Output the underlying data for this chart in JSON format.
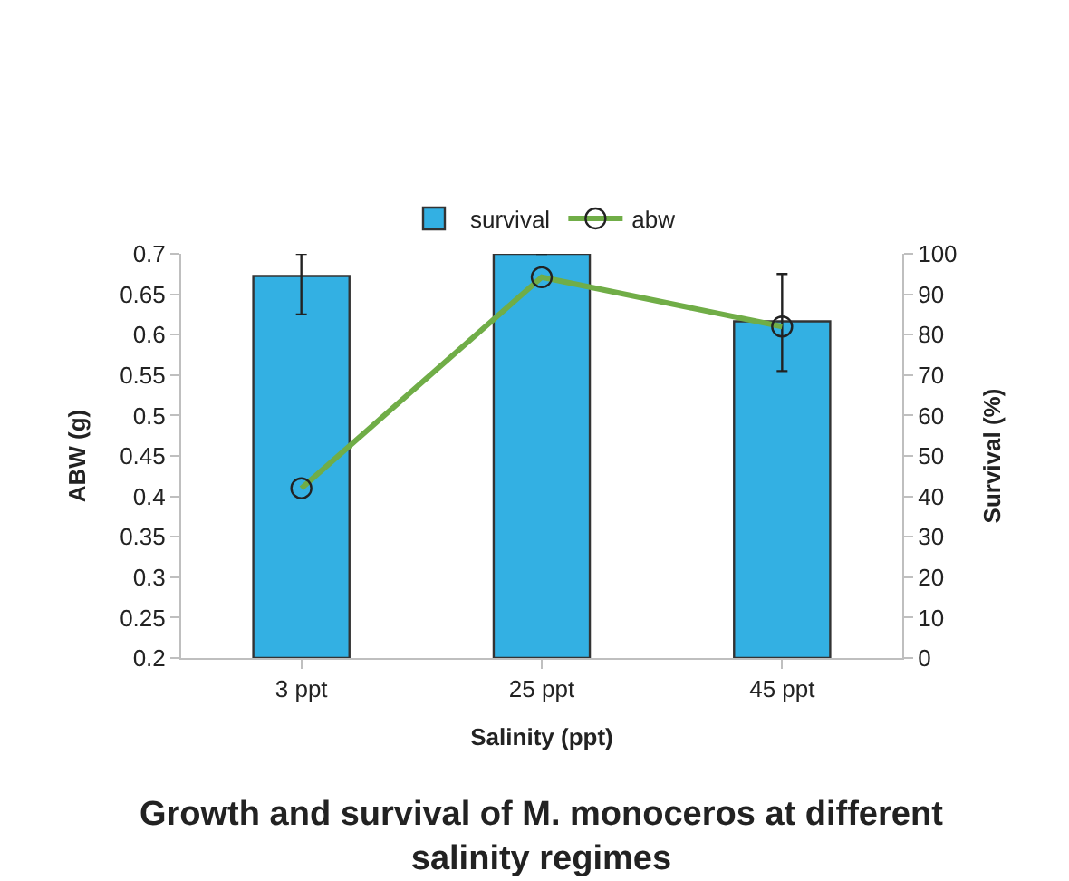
{
  "chart_data": {
    "type": "bar",
    "title": "Growth and survival of M. monoceros at different salinity regimes",
    "xlabel": "Salinity (ppt)",
    "ylabel": "ABW (g)",
    "y2label": "Survival (%)",
    "categories": [
      "3 ppt",
      "25 ppt",
      "45 ppt"
    ],
    "series": [
      {
        "name": "survival",
        "axis": "y2",
        "color": "#33b0e3",
        "values": [
          94.5,
          100,
          83.3
        ],
        "errors": [
          [
            85,
            100
          ],
          null,
          [
            71,
            95
          ]
        ]
      },
      {
        "name": "abw",
        "type": "line",
        "color": "#70ad47",
        "marker": "circle",
        "values": [
          0.41,
          0.671,
          0.61
        ]
      }
    ],
    "ylim": [
      0.2,
      0.7
    ],
    "yticks": [
      0.2,
      0.25,
      0.3,
      0.35,
      0.4,
      0.45,
      0.5,
      0.55,
      0.6,
      0.65,
      0.7
    ],
    "y2lim": [
      0,
      100
    ],
    "y2ticks": [
      0,
      10,
      20,
      30,
      40,
      50,
      60,
      70,
      80,
      90,
      100
    ],
    "legend": "top"
  }
}
